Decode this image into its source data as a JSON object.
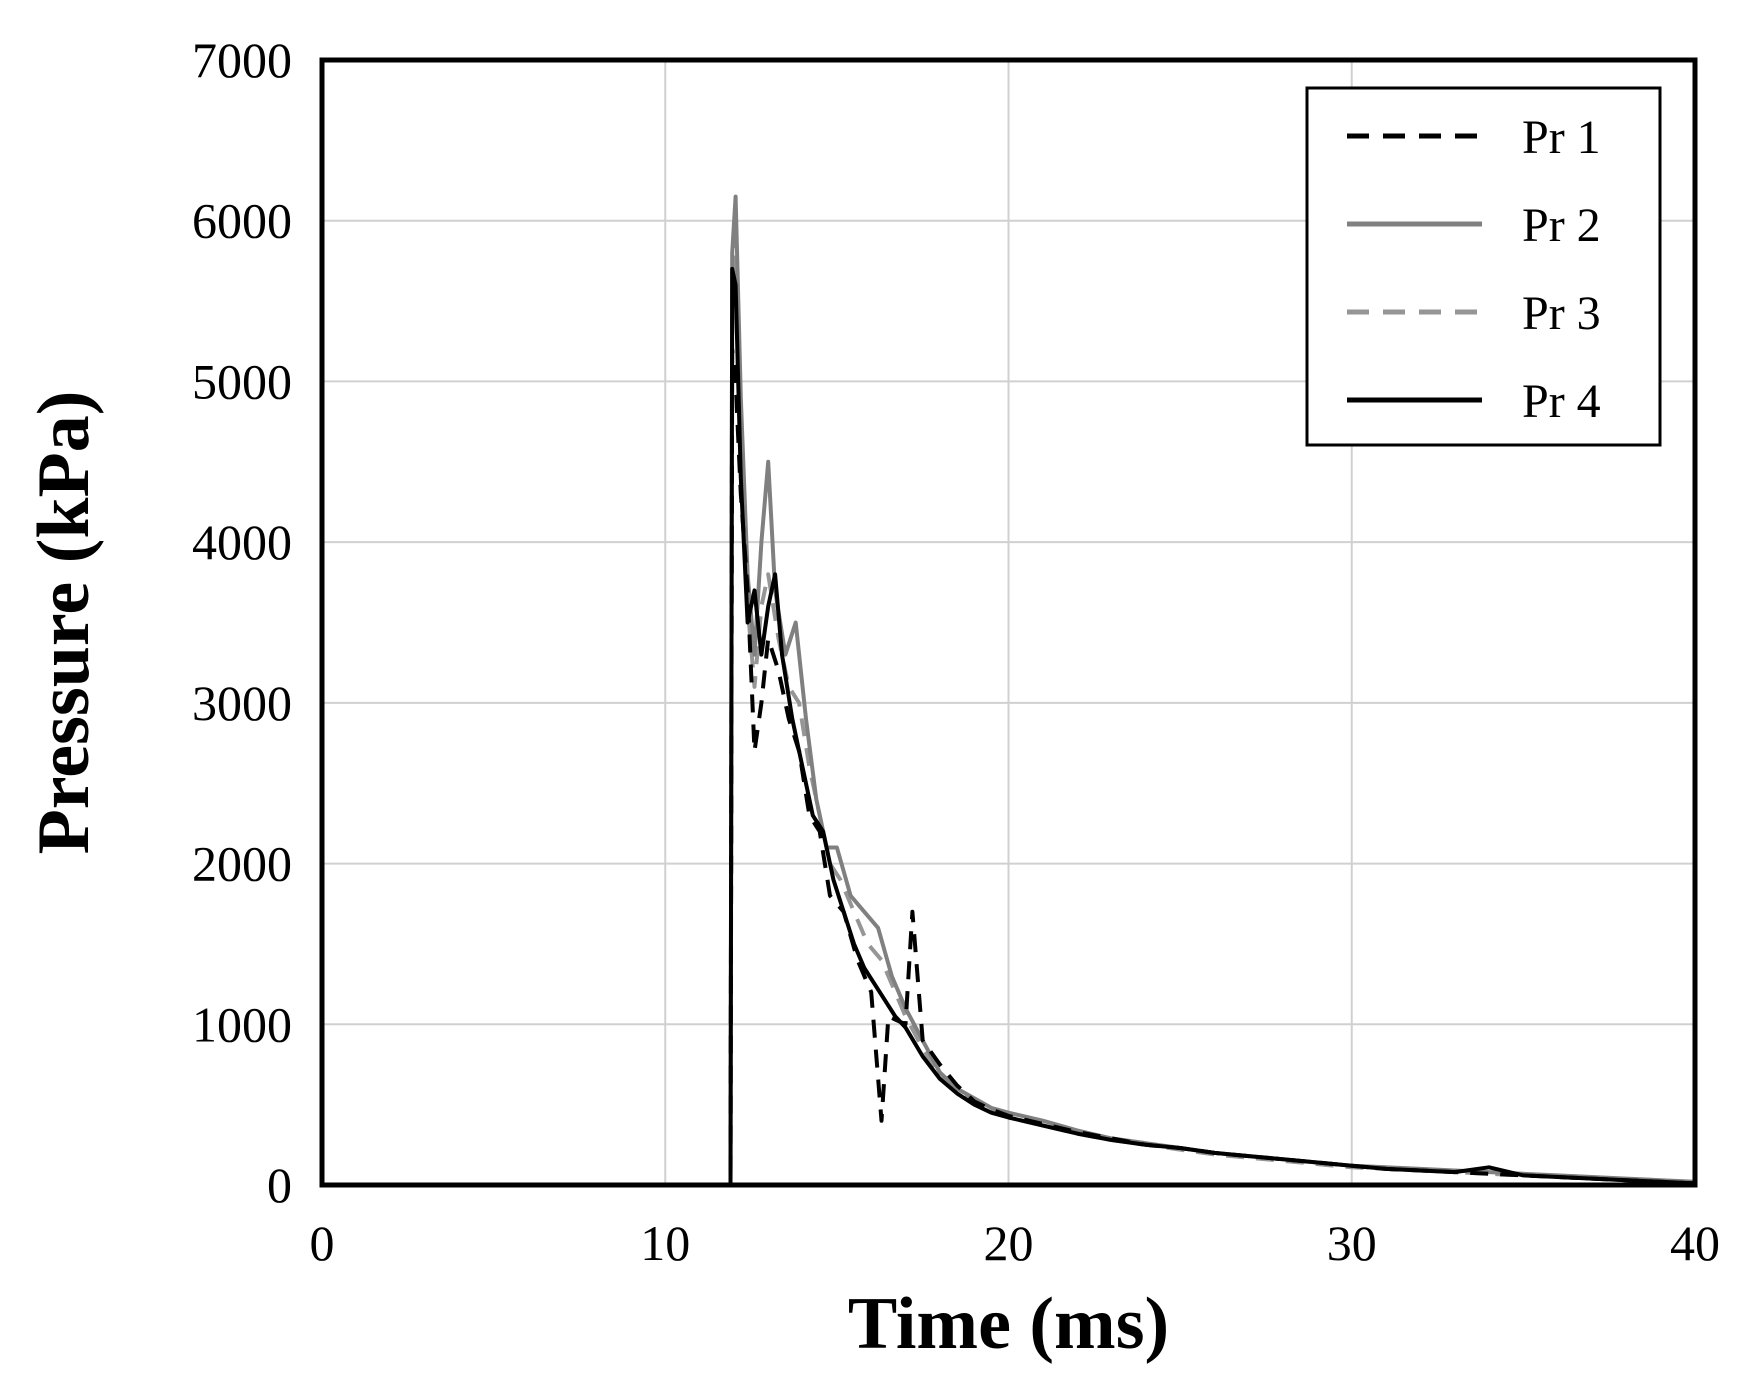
{
  "chart_data": {
    "type": "line",
    "title": "",
    "xlabel": "Time (ms)",
    "ylabel": "Pressure (kPa)",
    "xlim": [
      0,
      40
    ],
    "ylim": [
      0,
      7000
    ],
    "x_ticks": [
      "0",
      "10",
      "20",
      "30",
      "40"
    ],
    "y_ticks": [
      "0",
      "1000",
      "2000",
      "3000",
      "4000",
      "5000",
      "6000",
      "7000"
    ],
    "grid": true,
    "legend_position": "top-right",
    "series": [
      {
        "name": "Pr 1",
        "color": "#000000",
        "style": "dashed",
        "points": [
          [
            0,
            0
          ],
          [
            11.9,
            0
          ],
          [
            11.95,
            5200
          ],
          [
            12.05,
            5000
          ],
          [
            12.2,
            4300
          ],
          [
            12.4,
            3700
          ],
          [
            12.6,
            2700
          ],
          [
            12.8,
            3000
          ],
          [
            13.0,
            3400
          ],
          [
            13.3,
            3200
          ],
          [
            13.6,
            2900
          ],
          [
            13.9,
            2700
          ],
          [
            14.2,
            2300
          ],
          [
            14.5,
            2200
          ],
          [
            14.8,
            1800
          ],
          [
            15.2,
            1700
          ],
          [
            15.6,
            1400
          ],
          [
            16.0,
            1200
          ],
          [
            16.3,
            400
          ],
          [
            16.5,
            1050
          ],
          [
            17.0,
            1000
          ],
          [
            17.2,
            1700
          ],
          [
            17.5,
            900
          ],
          [
            18.0,
            750
          ],
          [
            18.5,
            620
          ],
          [
            19.0,
            520
          ],
          [
            19.5,
            470
          ],
          [
            20,
            430
          ],
          [
            21,
            380
          ],
          [
            22,
            330
          ],
          [
            23,
            290
          ],
          [
            24,
            250
          ],
          [
            25,
            230
          ],
          [
            26,
            200
          ],
          [
            27,
            180
          ],
          [
            28,
            160
          ],
          [
            29,
            140
          ],
          [
            30,
            120
          ],
          [
            31,
            100
          ],
          [
            32,
            90
          ],
          [
            33,
            80
          ],
          [
            34,
            70
          ],
          [
            35,
            60
          ],
          [
            36,
            50
          ],
          [
            37,
            40
          ],
          [
            38,
            30
          ],
          [
            39,
            20
          ],
          [
            40,
            10
          ]
        ]
      },
      {
        "name": "Pr 2",
        "color": "#808080",
        "style": "solid",
        "points": [
          [
            0,
            0
          ],
          [
            11.9,
            0
          ],
          [
            11.95,
            5800
          ],
          [
            12.05,
            6150
          ],
          [
            12.2,
            4900
          ],
          [
            12.4,
            3800
          ],
          [
            12.6,
            3300
          ],
          [
            12.8,
            4000
          ],
          [
            13.0,
            4500
          ],
          [
            13.2,
            3700
          ],
          [
            13.5,
            3300
          ],
          [
            13.8,
            3500
          ],
          [
            14.1,
            2900
          ],
          [
            14.4,
            2400
          ],
          [
            14.7,
            2100
          ],
          [
            15.0,
            2100
          ],
          [
            15.4,
            1800
          ],
          [
            15.8,
            1700
          ],
          [
            16.2,
            1600
          ],
          [
            16.6,
            1300
          ],
          [
            17.0,
            1100
          ],
          [
            17.5,
            900
          ],
          [
            18.0,
            700
          ],
          [
            18.5,
            600
          ],
          [
            19.0,
            540
          ],
          [
            19.5,
            480
          ],
          [
            20,
            450
          ],
          [
            21,
            400
          ],
          [
            22,
            340
          ],
          [
            23,
            290
          ],
          [
            24,
            260
          ],
          [
            25,
            230
          ],
          [
            26,
            200
          ],
          [
            27,
            180
          ],
          [
            28,
            160
          ],
          [
            29,
            140
          ],
          [
            30,
            120
          ],
          [
            31,
            110
          ],
          [
            32,
            100
          ],
          [
            33,
            90
          ],
          [
            34,
            80
          ],
          [
            35,
            70
          ],
          [
            36,
            60
          ],
          [
            37,
            50
          ],
          [
            38,
            40
          ],
          [
            39,
            30
          ],
          [
            40,
            20
          ]
        ]
      },
      {
        "name": "Pr 3",
        "color": "#969696",
        "style": "dashed",
        "points": [
          [
            0,
            0
          ],
          [
            11.9,
            0
          ],
          [
            11.95,
            5500
          ],
          [
            12.05,
            5900
          ],
          [
            12.2,
            4700
          ],
          [
            12.4,
            3600
          ],
          [
            12.6,
            3100
          ],
          [
            12.8,
            3600
          ],
          [
            13.0,
            3800
          ],
          [
            13.3,
            3400
          ],
          [
            13.6,
            3100
          ],
          [
            13.9,
            3000
          ],
          [
            14.2,
            2600
          ],
          [
            14.5,
            2300
          ],
          [
            14.8,
            2000
          ],
          [
            15.1,
            1900
          ],
          [
            15.5,
            1700
          ],
          [
            15.9,
            1500
          ],
          [
            16.3,
            1400
          ],
          [
            16.7,
            1200
          ],
          [
            17.0,
            1050
          ],
          [
            17.5,
            850
          ],
          [
            18.0,
            680
          ],
          [
            18.5,
            590
          ],
          [
            19.0,
            520
          ],
          [
            19.5,
            460
          ],
          [
            20,
            420
          ],
          [
            21,
            370
          ],
          [
            22,
            320
          ],
          [
            23,
            280
          ],
          [
            24,
            250
          ],
          [
            25,
            220
          ],
          [
            26,
            190
          ],
          [
            27,
            170
          ],
          [
            28,
            150
          ],
          [
            29,
            130
          ],
          [
            30,
            110
          ],
          [
            31,
            100
          ],
          [
            32,
            90
          ],
          [
            33,
            80
          ],
          [
            34,
            70
          ],
          [
            35,
            60
          ],
          [
            36,
            50
          ],
          [
            37,
            40
          ],
          [
            38,
            30
          ],
          [
            39,
            20
          ],
          [
            40,
            10
          ]
        ]
      },
      {
        "name": "Pr 4",
        "color": "#000000",
        "style": "solid",
        "points": [
          [
            0,
            0
          ],
          [
            11.9,
            0
          ],
          [
            11.95,
            5700
          ],
          [
            12.05,
            5600
          ],
          [
            12.2,
            4400
          ],
          [
            12.4,
            3500
          ],
          [
            12.6,
            3700
          ],
          [
            12.8,
            3300
          ],
          [
            13.0,
            3600
          ],
          [
            13.2,
            3800
          ],
          [
            13.4,
            3300
          ],
          [
            13.7,
            2900
          ],
          [
            14.0,
            2600
          ],
          [
            14.3,
            2300
          ],
          [
            14.6,
            2200
          ],
          [
            14.9,
            1900
          ],
          [
            15.2,
            1700
          ],
          [
            15.5,
            1500
          ],
          [
            15.8,
            1350
          ],
          [
            16.1,
            1250
          ],
          [
            16.4,
            1150
          ],
          [
            16.7,
            1050
          ],
          [
            17.0,
            980
          ],
          [
            17.5,
            800
          ],
          [
            18.0,
            660
          ],
          [
            18.5,
            570
          ],
          [
            19.0,
            500
          ],
          [
            19.5,
            450
          ],
          [
            20,
            420
          ],
          [
            21,
            370
          ],
          [
            22,
            320
          ],
          [
            23,
            280
          ],
          [
            24,
            250
          ],
          [
            25,
            230
          ],
          [
            26,
            200
          ],
          [
            27,
            180
          ],
          [
            28,
            160
          ],
          [
            29,
            140
          ],
          [
            30,
            120
          ],
          [
            31,
            100
          ],
          [
            32,
            90
          ],
          [
            33,
            80
          ],
          [
            34,
            110
          ],
          [
            35,
            60
          ],
          [
            36,
            50
          ],
          [
            37,
            40
          ],
          [
            38,
            30
          ],
          [
            39,
            20
          ],
          [
            40,
            10
          ]
        ]
      }
    ]
  }
}
